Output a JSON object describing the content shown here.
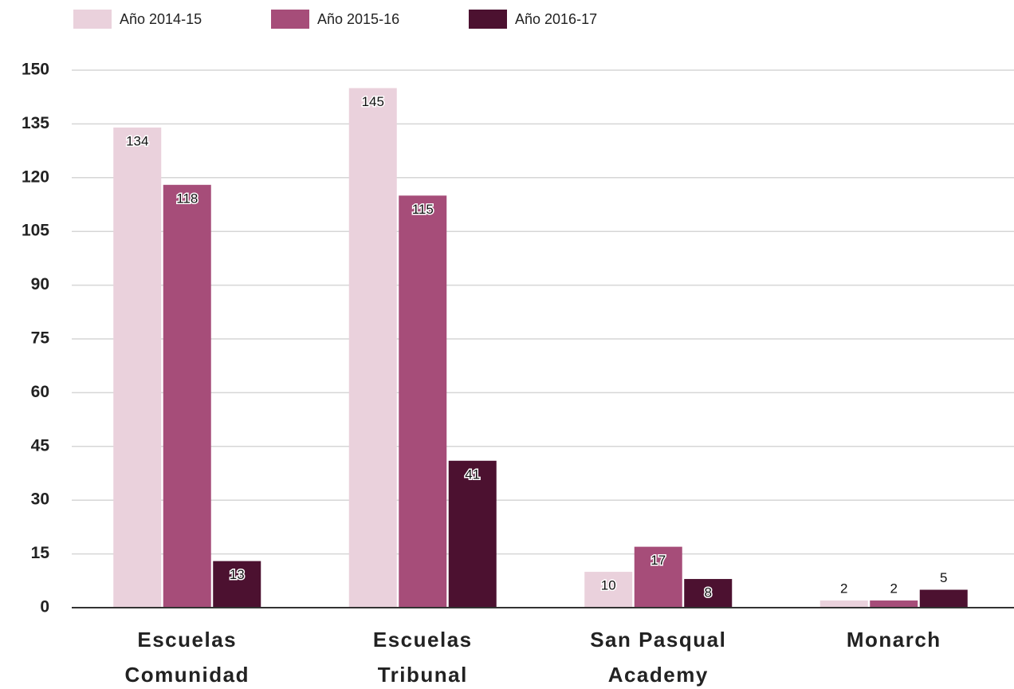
{
  "chart_data": {
    "type": "bar",
    "categories": [
      [
        "Escuelas",
        "Comunidad"
      ],
      [
        "Escuelas",
        "Tribunal"
      ],
      [
        "San Pasqual",
        "Academy"
      ],
      [
        "Monarch"
      ]
    ],
    "series": [
      {
        "name": "Año 2014-15",
        "color": "#ead1dc",
        "values": [
          134,
          145,
          10,
          2
        ]
      },
      {
        "name": "Año 2015-16",
        "color": "#a64d79",
        "values": [
          118,
          115,
          17,
          2
        ]
      },
      {
        "name": "Año 2016-17",
        "color": "#4c1130",
        "values": [
          13,
          41,
          8,
          5
        ]
      }
    ],
    "ylim": [
      0,
      150
    ],
    "yticks": [
      0,
      15,
      30,
      45,
      60,
      75,
      90,
      105,
      120,
      135,
      150
    ],
    "grid": true,
    "legend": "top-left"
  }
}
